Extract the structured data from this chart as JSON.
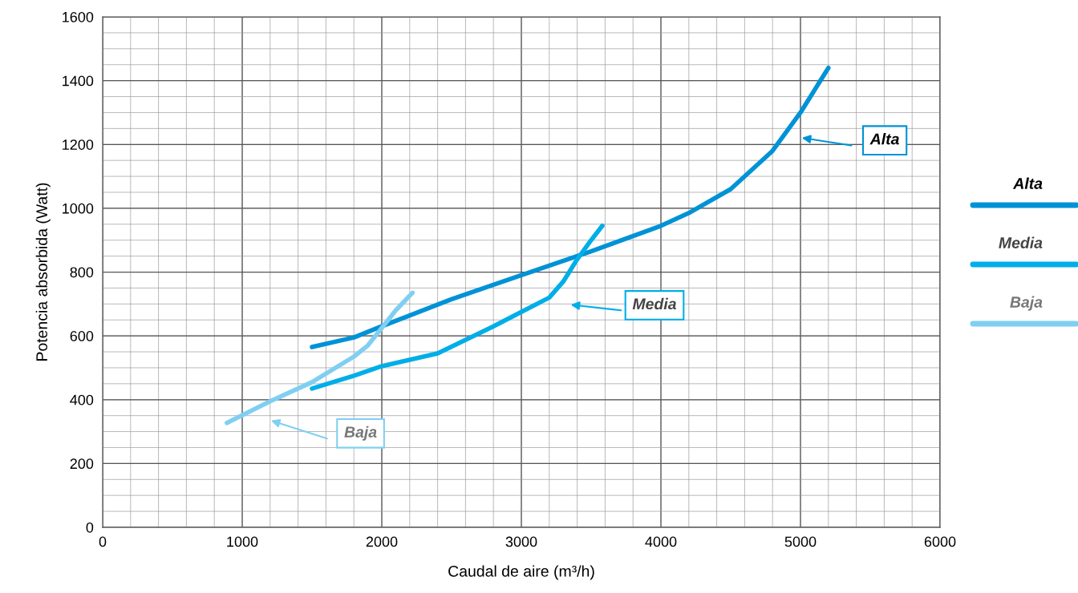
{
  "chart_data": {
    "type": "line",
    "xlabel": "Caudal de aire (m³/h)",
    "ylabel": "Potencia absorbida (Watt)",
    "xlim": [
      0,
      6000
    ],
    "xticks": [
      0,
      1000,
      2000,
      3000,
      4000,
      5000,
      6000
    ],
    "ylim": [
      0,
      1600
    ],
    "yticks": [
      0,
      200,
      400,
      600,
      800,
      1000,
      1200,
      1400,
      1600
    ],
    "grid": true,
    "legend": "right",
    "marker": "none",
    "line_style": "solid",
    "series": [
      {
        "name": "Alta",
        "color": "#0092d6",
        "x": [
          1500,
          1800,
          2000,
          2500,
          3000,
          3500,
          4000,
          4200,
          4500,
          4800,
          5000,
          5200
        ],
        "values": [
          565,
          595,
          630,
          715,
          790,
          865,
          945,
          985,
          1060,
          1180,
          1300,
          1440
        ]
      },
      {
        "name": "Media",
        "color": "#00aee8",
        "x": [
          1500,
          1800,
          2000,
          2400,
          2800,
          3000,
          3200,
          3300,
          3400,
          3500,
          3580
        ],
        "values": [
          435,
          475,
          505,
          545,
          630,
          675,
          720,
          770,
          840,
          900,
          945
        ]
      },
      {
        "name": "Baja",
        "color": "#80cff2",
        "x": [
          890,
          1200,
          1500,
          1800,
          1900,
          2000,
          2100,
          2220
        ],
        "values": [
          327,
          395,
          455,
          535,
          570,
          625,
          680,
          735
        ]
      }
    ],
    "annotations": [
      "Alta",
      "Media",
      "Baja"
    ]
  }
}
